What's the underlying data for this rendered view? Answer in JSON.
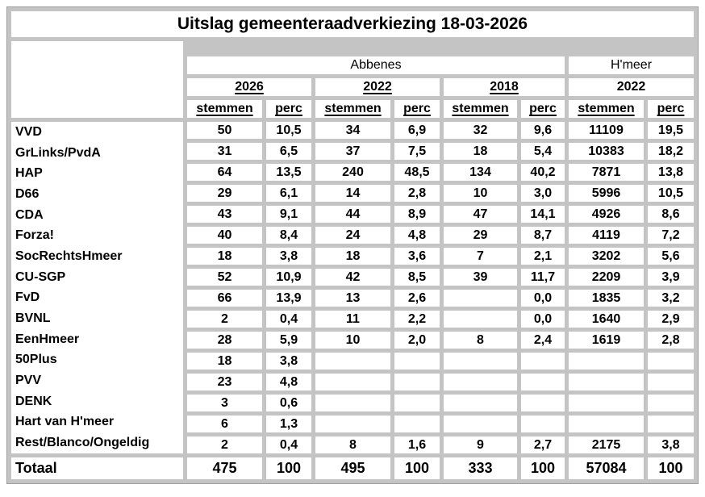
{
  "title": "Uitslag gemeenteraadverkiezing 18-03-2026",
  "colors": {
    "background": "#c4c4c4",
    "cell": "#ffffff",
    "text": "#000000",
    "frame": "#9e9e9e"
  },
  "table": {
    "column_groups": [
      {
        "label": "Abbenes"
      },
      {
        "label": "H'meer"
      }
    ],
    "year_headers": [
      "2026",
      "2022",
      "2018",
      "2022"
    ],
    "sub_headers": [
      "stemmen",
      "perc",
      "stemmen",
      "perc",
      "stemmen",
      "perc",
      "stemmen",
      "perc"
    ],
    "rows": [
      {
        "party": "VVD",
        "values": [
          "50",
          "10,5",
          "34",
          "6,9",
          "32",
          "9,6",
          "11109",
          "19,5"
        ]
      },
      {
        "party": "GrLinks/PvdA",
        "values": [
          "31",
          "6,5",
          "37",
          "7,5",
          "18",
          "5,4",
          "10383",
          "18,2"
        ]
      },
      {
        "party": "HAP",
        "values": [
          "64",
          "13,5",
          "240",
          "48,5",
          "134",
          "40,2",
          "7871",
          "13,8"
        ]
      },
      {
        "party": "D66",
        "values": [
          "29",
          "6,1",
          "14",
          "2,8",
          "10",
          "3,0",
          "5996",
          "10,5"
        ]
      },
      {
        "party": "CDA",
        "values": [
          "43",
          "9,1",
          "44",
          "8,9",
          "47",
          "14,1",
          "4926",
          "8,6"
        ]
      },
      {
        "party": "Forza!",
        "values": [
          "40",
          "8,4",
          "24",
          "4,8",
          "29",
          "8,7",
          "4119",
          "7,2"
        ]
      },
      {
        "party": "SocRechtsHmeer",
        "values": [
          "18",
          "3,8",
          "18",
          "3,6",
          "7",
          "2,1",
          "3202",
          "5,6"
        ]
      },
      {
        "party": "CU-SGP",
        "values": [
          "52",
          "10,9",
          "42",
          "8,5",
          "39",
          "11,7",
          "2209",
          "3,9"
        ]
      },
      {
        "party": "FvD",
        "values": [
          "66",
          "13,9",
          "13",
          "2,6",
          "",
          "0,0",
          "1835",
          "3,2"
        ]
      },
      {
        "party": "BVNL",
        "values": [
          "2",
          "0,4",
          "11",
          "2,2",
          "",
          "0,0",
          "1640",
          "2,9"
        ]
      },
      {
        "party": "EenHmeer",
        "values": [
          "28",
          "5,9",
          "10",
          "2,0",
          "8",
          "2,4",
          "1619",
          "2,8"
        ]
      },
      {
        "party": "50Plus",
        "values": [
          "18",
          "3,8",
          "",
          "",
          "",
          "",
          "",
          ""
        ]
      },
      {
        "party": "PVV",
        "values": [
          "23",
          "4,8",
          "",
          "",
          "",
          "",
          "",
          ""
        ]
      },
      {
        "party": "DENK",
        "values": [
          "3",
          "0,6",
          "",
          "",
          "",
          "",
          "",
          ""
        ]
      },
      {
        "party": "Hart van H'meer",
        "values": [
          "6",
          "1,3",
          "",
          "",
          "",
          "",
          "",
          ""
        ]
      },
      {
        "party": "Rest/Blanco/Ongeldig",
        "values": [
          "2",
          "0,4",
          "8",
          "1,6",
          "9",
          "2,7",
          "2175",
          "3,8"
        ]
      }
    ],
    "total": {
      "label": "Totaal",
      "values": [
        "475",
        "100",
        "495",
        "100",
        "333",
        "100",
        "57084",
        "100"
      ]
    }
  }
}
